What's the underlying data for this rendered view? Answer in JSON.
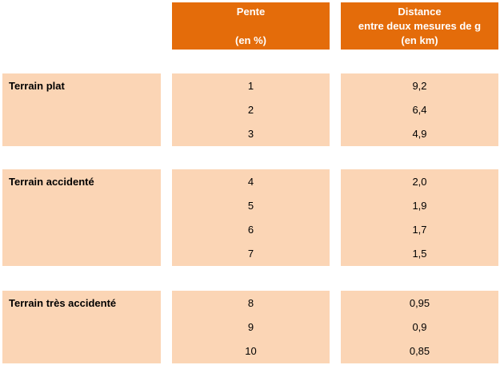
{
  "header": {
    "pente_title": "Pente",
    "pente_unit": "(en %)",
    "distance_title": "Distance",
    "distance_desc": "entre deux mesures de g",
    "distance_unit": "(en km)"
  },
  "groups": [
    {
      "label": "Terrain plat",
      "rows": [
        {
          "pente": "1",
          "distance": "9,2"
        },
        {
          "pente": "2",
          "distance": "6,4"
        },
        {
          "pente": "3",
          "distance": "4,9"
        }
      ]
    },
    {
      "label": "Terrain accidenté",
      "rows": [
        {
          "pente": "4",
          "distance": "2,0"
        },
        {
          "pente": "5",
          "distance": "1,9"
        },
        {
          "pente": "6",
          "distance": "1,7"
        },
        {
          "pente": "7",
          "distance": "1,5"
        }
      ]
    },
    {
      "label": "Terrain très accidenté",
      "rows": [
        {
          "pente": "8",
          "distance": "0,95"
        },
        {
          "pente": "9",
          "distance": "0,9"
        },
        {
          "pente": "10",
          "distance": "0,85"
        }
      ]
    }
  ],
  "colors": {
    "header_bg": "#e46c0a",
    "header_text": "#ffffff",
    "cell_bg": "#fbd5b5"
  }
}
